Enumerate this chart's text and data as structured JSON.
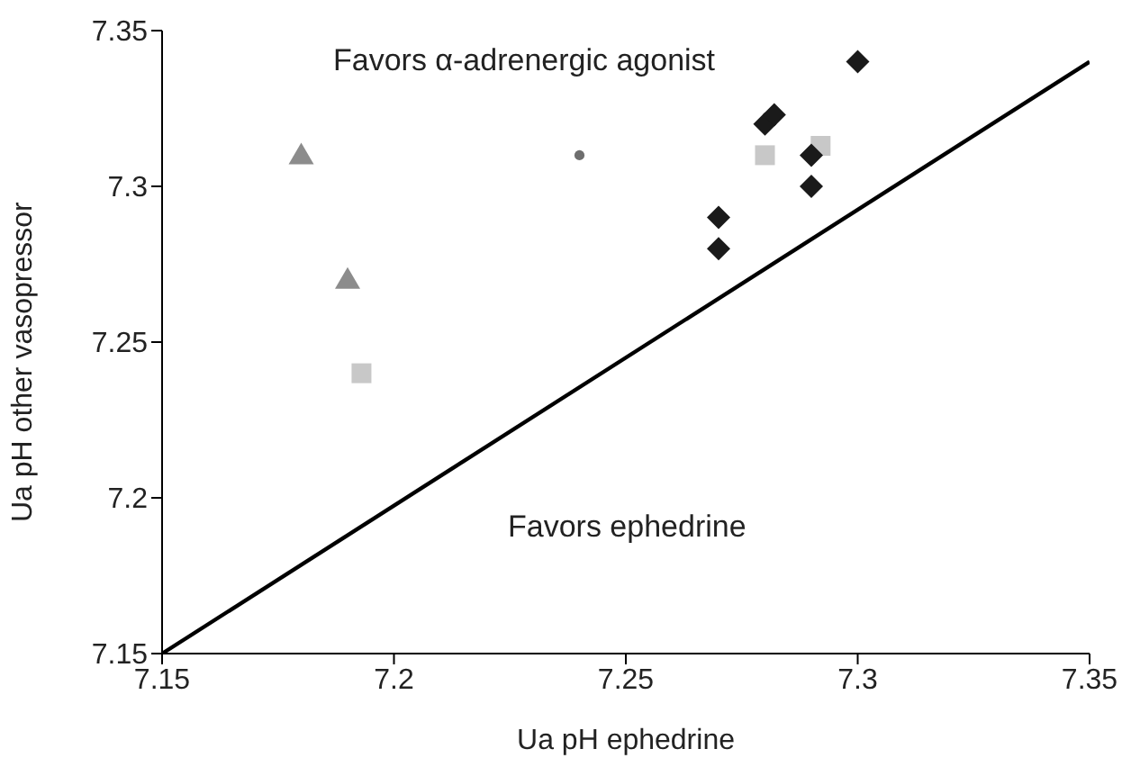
{
  "chart_data": {
    "type": "scatter",
    "xlabel": "Ua pH ephedrine",
    "ylabel": "Ua pH other vasopressor",
    "annotations": [
      "Favors α-adrenergic agonist",
      "Favors ephedrine"
    ],
    "xlim": [
      7.15,
      7.35
    ],
    "xticks": [
      7.15,
      7.2,
      7.25,
      7.3,
      7.35
    ],
    "ylim": [
      7.15,
      7.35
    ],
    "yticks": [
      7.15,
      7.2,
      7.25,
      7.3,
      7.35
    ],
    "grid": false,
    "legend": false,
    "series": [
      {
        "type": "line",
        "color": "#000000",
        "marker": "none",
        "x": [
          7.15,
          7.35
        ],
        "values": [
          7.15,
          7.34
        ]
      },
      {
        "color": "#8c8c8c",
        "marker": "triangle",
        "x": [
          7.18,
          7.19
        ],
        "values": [
          7.31,
          7.27
        ]
      },
      {
        "color": "#c8c8c8",
        "marker": "square",
        "x": [
          7.193,
          7.28,
          7.292
        ],
        "values": [
          7.24,
          7.31,
          7.313
        ]
      },
      {
        "color": "#6e6e6e",
        "marker": "circle",
        "x": [
          7.24
        ],
        "values": [
          7.31
        ]
      },
      {
        "color": "#1a1a1a",
        "marker": "diamond",
        "x": [
          7.3,
          7.28,
          7.282,
          7.29,
          7.29,
          7.27,
          7.27
        ],
        "values": [
          7.34,
          7.32,
          7.323,
          7.31,
          7.3,
          7.29,
          7.28
        ]
      }
    ]
  }
}
